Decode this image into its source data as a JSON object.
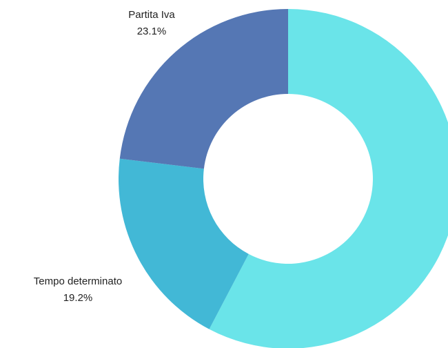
{
  "chart_data": {
    "type": "donut",
    "categories": [
      null,
      "Tempo determinato",
      "Partita Iva"
    ],
    "values": [
      57.7,
      19.2,
      23.1
    ],
    "value_labels": [
      null,
      "19.2%",
      "23.1%"
    ],
    "colors": [
      "#6ae4e9",
      "#42b8d6",
      "#5577b4"
    ]
  }
}
